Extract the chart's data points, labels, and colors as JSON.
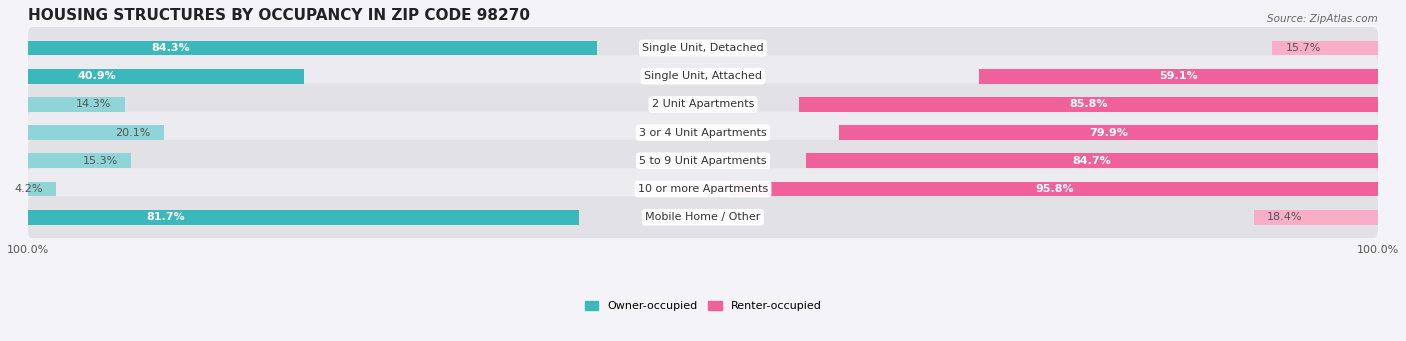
{
  "title": "HOUSING STRUCTURES BY OCCUPANCY IN ZIP CODE 98270",
  "source": "Source: ZipAtlas.com",
  "categories": [
    "Single Unit, Detached",
    "Single Unit, Attached",
    "2 Unit Apartments",
    "3 or 4 Unit Apartments",
    "5 to 9 Unit Apartments",
    "10 or more Apartments",
    "Mobile Home / Other"
  ],
  "owner_pct": [
    84.3,
    40.9,
    14.3,
    20.1,
    15.3,
    4.2,
    81.7
  ],
  "renter_pct": [
    15.7,
    59.1,
    85.8,
    79.9,
    84.7,
    95.8,
    18.4
  ],
  "owner_color_large": "#3bb8bc",
  "owner_color_small": "#8fd4d6",
  "renter_color_large": "#f0609a",
  "renter_color_small": "#f9aec8",
  "row_bg_dark": "#e2e2e6",
  "row_bg_light": "#ececf0",
  "bg_color": "#f4f4f8",
  "title_fontsize": 11,
  "bar_label_fontsize": 8,
  "cat_label_fontsize": 8,
  "tick_fontsize": 8,
  "source_fontsize": 7.5,
  "legend_fontsize": 8,
  "owner_large_thresh": 40,
  "renter_large_thresh": 40
}
